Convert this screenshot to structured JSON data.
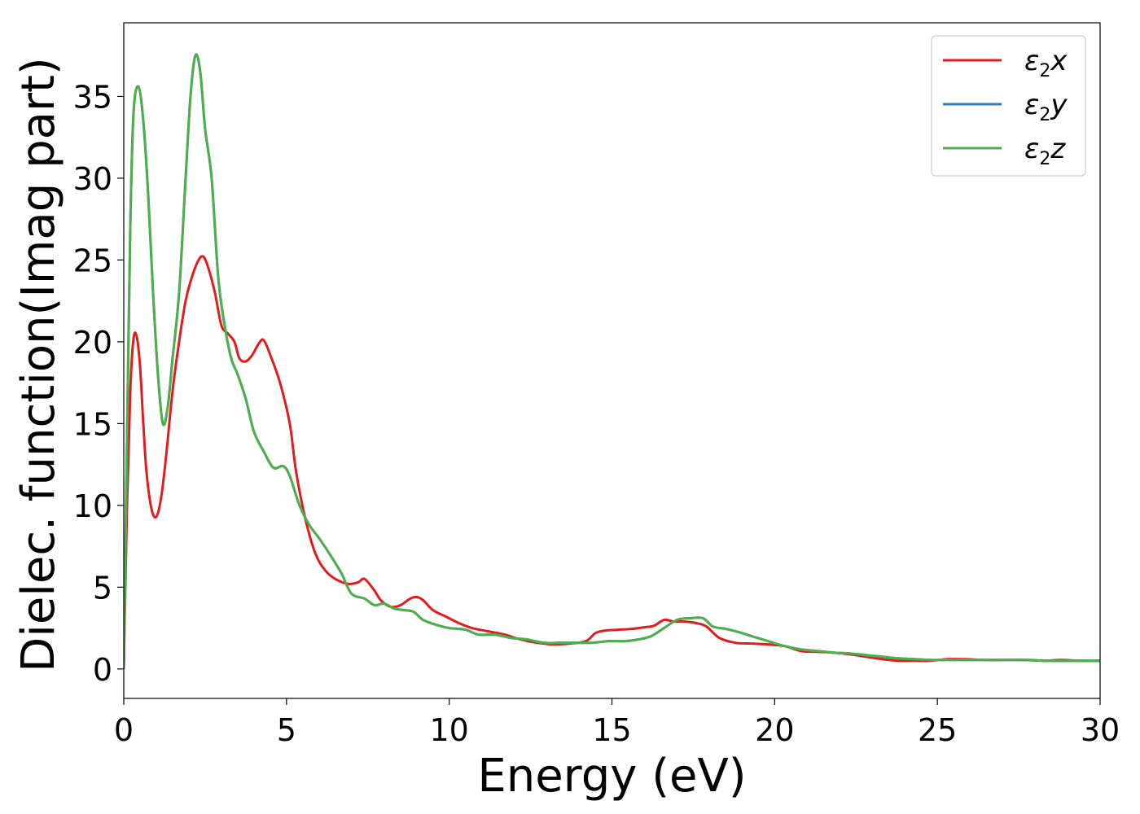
{
  "chart_data": {
    "type": "line",
    "title": "",
    "xlabel": "Energy (eV)",
    "ylabel": "Dielec. function(Imag part)",
    "xlim": [
      0,
      30
    ],
    "ylim": [
      -1.8,
      39.5
    ],
    "xticks": [
      0,
      5,
      10,
      15,
      20,
      25,
      30
    ],
    "yticks": [
      0,
      5,
      10,
      15,
      20,
      25,
      30,
      35
    ],
    "grid": false,
    "legend_position": "top-right",
    "series": [
      {
        "name": "ε2x",
        "legend": {
          "base": "ε",
          "sub": "2",
          "tail": "x"
        },
        "color": "#e41a1c",
        "points": [
          [
            0,
            0
          ],
          [
            0.1,
            10
          ],
          [
            0.2,
            17
          ],
          [
            0.3,
            20.2
          ],
          [
            0.4,
            20.3
          ],
          [
            0.5,
            18.5
          ],
          [
            0.6,
            15
          ],
          [
            0.7,
            12
          ],
          [
            0.85,
            9.8
          ],
          [
            1.0,
            9.3
          ],
          [
            1.15,
            10.5
          ],
          [
            1.3,
            13
          ],
          [
            1.5,
            17
          ],
          [
            1.7,
            20
          ],
          [
            1.9,
            22.5
          ],
          [
            2.1,
            24
          ],
          [
            2.3,
            25
          ],
          [
            2.45,
            25.2
          ],
          [
            2.6,
            24.5
          ],
          [
            2.8,
            23
          ],
          [
            3.0,
            21
          ],
          [
            3.2,
            20.5
          ],
          [
            3.4,
            20
          ],
          [
            3.55,
            19
          ],
          [
            3.75,
            18.8
          ],
          [
            3.95,
            19.2
          ],
          [
            4.15,
            19.9
          ],
          [
            4.3,
            20.1
          ],
          [
            4.5,
            19.2
          ],
          [
            4.8,
            17.5
          ],
          [
            5.1,
            15
          ],
          [
            5.3,
            12
          ],
          [
            5.6,
            9
          ],
          [
            5.9,
            7
          ],
          [
            6.2,
            6
          ],
          [
            6.5,
            5.5
          ],
          [
            6.9,
            5.2
          ],
          [
            7.2,
            5.3
          ],
          [
            7.4,
            5.5
          ],
          [
            7.7,
            4.8
          ],
          [
            7.9,
            4.2
          ],
          [
            8.2,
            3.8
          ],
          [
            8.5,
            3.9
          ],
          [
            8.8,
            4.3
          ],
          [
            9.0,
            4.4
          ],
          [
            9.2,
            4.2
          ],
          [
            9.5,
            3.6
          ],
          [
            9.9,
            3.2
          ],
          [
            10.3,
            2.8
          ],
          [
            10.7,
            2.5
          ],
          [
            11.2,
            2.3
          ],
          [
            11.7,
            2.1
          ],
          [
            12.2,
            1.8
          ],
          [
            12.7,
            1.6
          ],
          [
            13.2,
            1.5
          ],
          [
            13.7,
            1.55
          ],
          [
            14.2,
            1.7
          ],
          [
            14.5,
            2.2
          ],
          [
            14.8,
            2.35
          ],
          [
            15.2,
            2.4
          ],
          [
            15.6,
            2.45
          ],
          [
            16.0,
            2.55
          ],
          [
            16.3,
            2.65
          ],
          [
            16.6,
            3.0
          ],
          [
            16.9,
            2.9
          ],
          [
            17.2,
            2.9
          ],
          [
            17.6,
            2.8
          ],
          [
            17.9,
            2.6
          ],
          [
            18.3,
            1.9
          ],
          [
            18.8,
            1.6
          ],
          [
            19.3,
            1.55
          ],
          [
            19.8,
            1.5
          ],
          [
            20.3,
            1.4
          ],
          [
            20.8,
            1.1
          ],
          [
            21.3,
            1.05
          ],
          [
            21.8,
            1.0
          ],
          [
            22.3,
            0.9
          ],
          [
            22.8,
            0.75
          ],
          [
            23.3,
            0.6
          ],
          [
            23.8,
            0.5
          ],
          [
            24.3,
            0.5
          ],
          [
            24.8,
            0.5
          ],
          [
            25.3,
            0.6
          ],
          [
            25.8,
            0.6
          ],
          [
            26.5,
            0.55
          ],
          [
            27.2,
            0.55
          ],
          [
            27.8,
            0.55
          ],
          [
            28.3,
            0.5
          ],
          [
            28.8,
            0.55
          ],
          [
            29.4,
            0.5
          ],
          [
            30.0,
            0.5
          ]
        ]
      },
      {
        "name": "ε2y",
        "legend": {
          "base": "ε",
          "sub": "2",
          "tail": "y"
        },
        "color": "#377eb8",
        "points": [
          [
            0,
            0
          ],
          [
            0.1,
            14
          ],
          [
            0.2,
            27
          ],
          [
            0.3,
            34
          ],
          [
            0.45,
            35.6
          ],
          [
            0.6,
            33.5
          ],
          [
            0.75,
            29
          ],
          [
            0.9,
            23
          ],
          [
            1.05,
            18
          ],
          [
            1.2,
            15
          ],
          [
            1.35,
            16
          ],
          [
            1.5,
            19
          ],
          [
            1.7,
            23
          ],
          [
            1.9,
            30
          ],
          [
            2.05,
            35
          ],
          [
            2.2,
            37.5
          ],
          [
            2.35,
            36.5
          ],
          [
            2.5,
            33
          ],
          [
            2.7,
            30
          ],
          [
            2.9,
            24
          ],
          [
            3.1,
            21
          ],
          [
            3.3,
            19
          ],
          [
            3.5,
            18
          ],
          [
            3.75,
            16.5
          ],
          [
            4.0,
            14.5
          ],
          [
            4.3,
            13.3
          ],
          [
            4.6,
            12.3
          ],
          [
            4.9,
            12.4
          ],
          [
            5.1,
            11.8
          ],
          [
            5.4,
            10.0
          ],
          [
            5.7,
            8.8
          ],
          [
            6.0,
            8.0
          ],
          [
            6.4,
            6.8
          ],
          [
            6.7,
            5.8
          ],
          [
            7.0,
            4.6
          ],
          [
            7.4,
            4.3
          ],
          [
            7.7,
            3.9
          ],
          [
            8.0,
            4.0
          ],
          [
            8.3,
            3.7
          ],
          [
            8.6,
            3.6
          ],
          [
            8.9,
            3.5
          ],
          [
            9.2,
            3.0
          ],
          [
            9.6,
            2.7
          ],
          [
            10.0,
            2.5
          ],
          [
            10.5,
            2.4
          ],
          [
            10.9,
            2.1
          ],
          [
            11.4,
            2.1
          ],
          [
            11.9,
            1.9
          ],
          [
            12.4,
            1.8
          ],
          [
            12.9,
            1.6
          ],
          [
            13.4,
            1.6
          ],
          [
            13.9,
            1.6
          ],
          [
            14.4,
            1.6
          ],
          [
            14.9,
            1.7
          ],
          [
            15.4,
            1.7
          ],
          [
            15.8,
            1.8
          ],
          [
            16.2,
            2.0
          ],
          [
            16.6,
            2.5
          ],
          [
            17.0,
            3.0
          ],
          [
            17.4,
            3.1
          ],
          [
            17.8,
            3.1
          ],
          [
            18.1,
            2.6
          ],
          [
            18.5,
            2.45
          ],
          [
            18.9,
            2.25
          ],
          [
            19.3,
            2.0
          ],
          [
            19.8,
            1.7
          ],
          [
            20.3,
            1.4
          ],
          [
            20.8,
            1.2
          ],
          [
            21.3,
            1.1
          ],
          [
            21.8,
            1.0
          ],
          [
            22.3,
            0.95
          ],
          [
            22.8,
            0.85
          ],
          [
            23.3,
            0.75
          ],
          [
            23.8,
            0.65
          ],
          [
            24.3,
            0.6
          ],
          [
            24.8,
            0.55
          ],
          [
            25.3,
            0.55
          ],
          [
            26.0,
            0.55
          ],
          [
            26.8,
            0.55
          ],
          [
            27.6,
            0.55
          ],
          [
            28.4,
            0.5
          ],
          [
            29.2,
            0.5
          ],
          [
            30.0,
            0.5
          ]
        ]
      },
      {
        "name": "ε2z",
        "legend": {
          "base": "ε",
          "sub": "2",
          "tail": "z"
        },
        "color": "#4daf4a",
        "points": [
          [
            0,
            0
          ],
          [
            0.1,
            14
          ],
          [
            0.2,
            27
          ],
          [
            0.3,
            34
          ],
          [
            0.45,
            35.6
          ],
          [
            0.6,
            33.5
          ],
          [
            0.75,
            29
          ],
          [
            0.9,
            23
          ],
          [
            1.05,
            18
          ],
          [
            1.2,
            15
          ],
          [
            1.35,
            16
          ],
          [
            1.5,
            19
          ],
          [
            1.7,
            23
          ],
          [
            1.9,
            30
          ],
          [
            2.05,
            35
          ],
          [
            2.2,
            37.5
          ],
          [
            2.35,
            36.5
          ],
          [
            2.5,
            33
          ],
          [
            2.7,
            30
          ],
          [
            2.9,
            24
          ],
          [
            3.1,
            21
          ],
          [
            3.3,
            19
          ],
          [
            3.5,
            18
          ],
          [
            3.75,
            16.5
          ],
          [
            4.0,
            14.5
          ],
          [
            4.3,
            13.3
          ],
          [
            4.6,
            12.3
          ],
          [
            4.9,
            12.4
          ],
          [
            5.1,
            11.8
          ],
          [
            5.4,
            10.0
          ],
          [
            5.7,
            8.8
          ],
          [
            6.0,
            8.0
          ],
          [
            6.4,
            6.8
          ],
          [
            6.7,
            5.8
          ],
          [
            7.0,
            4.6
          ],
          [
            7.4,
            4.3
          ],
          [
            7.7,
            3.9
          ],
          [
            8.0,
            4.0
          ],
          [
            8.3,
            3.7
          ],
          [
            8.6,
            3.6
          ],
          [
            8.9,
            3.5
          ],
          [
            9.2,
            3.0
          ],
          [
            9.6,
            2.7
          ],
          [
            10.0,
            2.5
          ],
          [
            10.5,
            2.4
          ],
          [
            10.9,
            2.1
          ],
          [
            11.4,
            2.1
          ],
          [
            11.9,
            1.9
          ],
          [
            12.4,
            1.8
          ],
          [
            12.9,
            1.6
          ],
          [
            13.4,
            1.6
          ],
          [
            13.9,
            1.6
          ],
          [
            14.4,
            1.6
          ],
          [
            14.9,
            1.7
          ],
          [
            15.4,
            1.7
          ],
          [
            15.8,
            1.8
          ],
          [
            16.2,
            2.0
          ],
          [
            16.6,
            2.5
          ],
          [
            17.0,
            3.0
          ],
          [
            17.4,
            3.1
          ],
          [
            17.8,
            3.1
          ],
          [
            18.1,
            2.6
          ],
          [
            18.5,
            2.45
          ],
          [
            18.9,
            2.25
          ],
          [
            19.3,
            2.0
          ],
          [
            19.8,
            1.7
          ],
          [
            20.3,
            1.4
          ],
          [
            20.8,
            1.2
          ],
          [
            21.3,
            1.1
          ],
          [
            21.8,
            1.0
          ],
          [
            22.3,
            0.95
          ],
          [
            22.8,
            0.85
          ],
          [
            23.3,
            0.75
          ],
          [
            23.8,
            0.65
          ],
          [
            24.3,
            0.6
          ],
          [
            24.8,
            0.55
          ],
          [
            25.3,
            0.55
          ],
          [
            26.0,
            0.55
          ],
          [
            26.8,
            0.55
          ],
          [
            27.6,
            0.55
          ],
          [
            28.4,
            0.5
          ],
          [
            29.2,
            0.5
          ],
          [
            30.0,
            0.5
          ]
        ]
      }
    ]
  }
}
